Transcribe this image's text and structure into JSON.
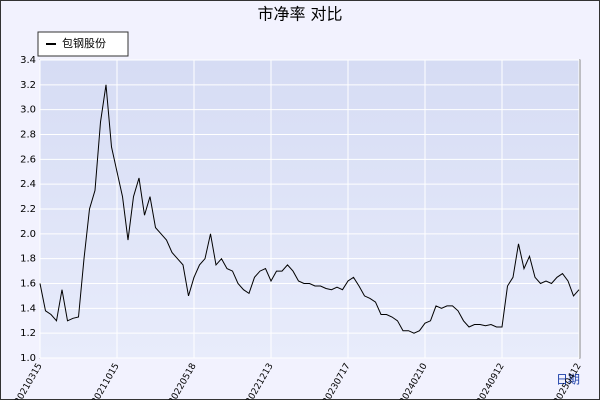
{
  "chart_data": {
    "type": "line",
    "title": "市净率 对比",
    "x_label": "日期",
    "categories": [
      "20210315",
      null,
      null,
      null,
      null,
      null,
      null,
      null,
      null,
      null,
      null,
      null,
      null,
      null,
      "20211015",
      null,
      null,
      null,
      null,
      null,
      null,
      null,
      null,
      null,
      null,
      null,
      null,
      null,
      "20220518",
      null,
      null,
      null,
      null,
      null,
      null,
      null,
      null,
      null,
      null,
      null,
      null,
      null,
      "20221213",
      null,
      null,
      null,
      null,
      null,
      null,
      null,
      null,
      null,
      null,
      null,
      null,
      null,
      "20230717",
      null,
      null,
      null,
      null,
      null,
      null,
      null,
      null,
      null,
      null,
      null,
      null,
      null,
      "20240210",
      null,
      null,
      null,
      null,
      null,
      null,
      null,
      null,
      null,
      null,
      null,
      null,
      null,
      "20240912",
      null,
      null,
      null,
      null,
      null,
      null,
      null,
      null,
      null,
      null,
      null,
      null,
      null,
      "20250412"
    ],
    "series": [
      {
        "name": "包钢股份",
        "color": "#000000",
        "values": [
          1.6,
          1.38,
          1.35,
          1.3,
          1.55,
          1.3,
          1.32,
          1.33,
          1.8,
          2.2,
          2.35,
          2.9,
          3.2,
          2.7,
          2.5,
          2.3,
          1.95,
          2.3,
          2.45,
          2.15,
          2.3,
          2.05,
          2.0,
          1.95,
          1.85,
          1.8,
          1.75,
          1.5,
          1.65,
          1.75,
          1.8,
          2.0,
          1.75,
          1.8,
          1.72,
          1.7,
          1.6,
          1.55,
          1.52,
          1.65,
          1.7,
          1.72,
          1.62,
          1.7,
          1.7,
          1.75,
          1.7,
          1.62,
          1.6,
          1.6,
          1.58,
          1.58,
          1.56,
          1.55,
          1.57,
          1.55,
          1.62,
          1.65,
          1.58,
          1.5,
          1.48,
          1.45,
          1.35,
          1.35,
          1.33,
          1.3,
          1.22,
          1.22,
          1.2,
          1.22,
          1.28,
          1.3,
          1.42,
          1.4,
          1.42,
          1.42,
          1.38,
          1.3,
          1.25,
          1.27,
          1.27,
          1.26,
          1.27,
          1.25,
          1.25,
          1.58,
          1.65,
          1.92,
          1.72,
          1.82,
          1.65,
          1.6,
          1.62,
          1.6,
          1.65,
          1.68,
          1.62,
          1.5,
          1.55
        ]
      }
    ],
    "ylim": [
      1,
      3.4
    ],
    "yticks": [
      {
        "value": 1,
        "label": "1.0"
      },
      1.2,
      1.4,
      1.6,
      1.8,
      {
        "value": 2,
        "label": "2.0"
      },
      2.2,
      2.4,
      2.6,
      2.8,
      {
        "value": 3,
        "label": "3.0"
      },
      3.2,
      3.4
    ],
    "grid": true,
    "legend": "top-left"
  }
}
